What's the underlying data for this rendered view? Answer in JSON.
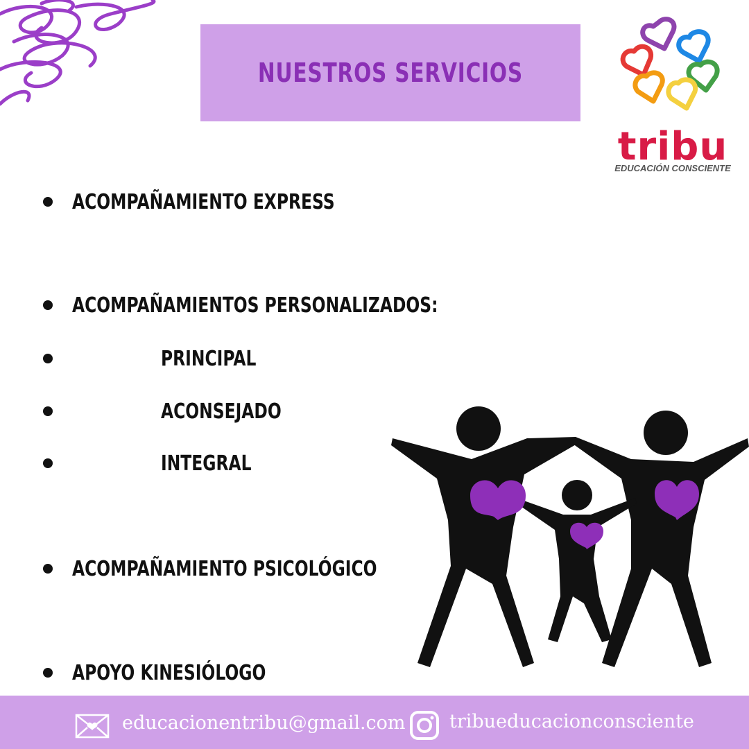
{
  "header": {
    "title": "NUESTROS SERVICIOS"
  },
  "brand": {
    "name": "tribu",
    "tagline": "EDUCACIÓN CONSCIENTE"
  },
  "services": {
    "express": "ACOMPAÑAMIENTO EXPRESS",
    "personalized": "ACOMPAÑAMIENTOS PERSONALIZADOS:",
    "principal": "PRINCIPAL",
    "aconsejado": "ACONSEJADO",
    "integral": "INTEGRAL",
    "psicologico": "ACOMPAÑAMIENTO PSICOLÓGICO",
    "kinesiologo": "APOYO KINESIÓLOGO"
  },
  "footer": {
    "email": "educacionentribu@gmail.com",
    "instagram": "tribueducacionconsciente"
  },
  "icons": {
    "mail": "envelope-heart-icon",
    "instagram": "instagram-icon"
  },
  "colors": {
    "accent_purple": "#8a2fb5",
    "light_purple": "#cfa0e8",
    "heart_purple": "#8e2fb8",
    "brand_red": "#d81b46"
  }
}
